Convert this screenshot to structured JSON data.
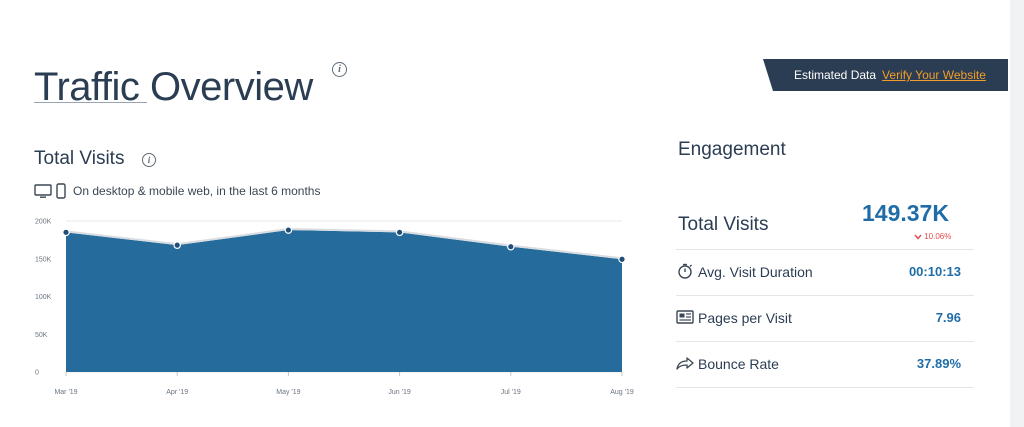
{
  "header": {
    "title": "Traffic Overview",
    "info_icon": "info-icon"
  },
  "banner": {
    "label": "Estimated Data",
    "link": "Verify Your Website",
    "link_color": "#f39c2a",
    "background": "#2b3d52"
  },
  "visits_section": {
    "title": "Total Visits",
    "device_icons": [
      "desktop-icon",
      "mobile-icon"
    ],
    "description": "On desktop & mobile web, in the last 6 months"
  },
  "engagement": {
    "title": "Engagement",
    "total_visits": {
      "label": "Total Visits",
      "value": "149.37K",
      "change": "10.06%",
      "change_direction": "down",
      "change_color": "#e34c4c"
    },
    "metrics": [
      {
        "icon": "stopwatch-icon",
        "label": "Avg. Visit Duration",
        "value": "00:10:13"
      },
      {
        "icon": "pages-icon",
        "label": "Pages per Visit",
        "value": "7.96"
      },
      {
        "icon": "share-arrow-icon",
        "label": "Bounce Rate",
        "value": "37.89%"
      }
    ],
    "value_color": "#1f6da8"
  },
  "chart_data": {
    "type": "area",
    "x": [
      "Mar '19",
      "Apr '19",
      "May '19",
      "Jun '19",
      "Jul '19",
      "Aug '19"
    ],
    "y_ticks": [
      "0",
      "50K",
      "100K",
      "150K",
      "200K"
    ],
    "ylim": [
      0,
      200000
    ],
    "series": [
      {
        "values": [
          185000,
          168000,
          188000,
          185000,
          166000,
          149370
        ],
        "color": "#256c9c"
      }
    ],
    "grid": true,
    "legend": "none"
  }
}
